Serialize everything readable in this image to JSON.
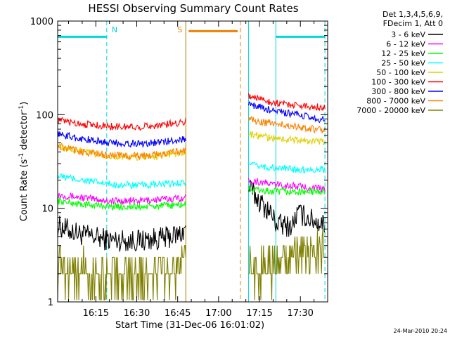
{
  "chart_data": {
    "type": "line",
    "title": "HESSI Observing Summary Count Rates",
    "xlabel": "Start Time (31-Dec-06 16:01:02)",
    "ylabel_main": "Count Rate (s",
    "ylabel_sup1": "-1",
    "ylabel_mid": " detector",
    "ylabel_sup2": "-1",
    "ylabel_end": ")",
    "y_scale": "log",
    "ylim": [
      1,
      1000
    ],
    "xlim": [
      "16:01",
      "17:40"
    ],
    "x_ticks": [
      "16:15",
      "16:30",
      "16:45",
      "17:00",
      "17:15",
      "17:30"
    ],
    "y_ticks": [
      "1",
      "10",
      "100",
      "1000"
    ],
    "legend_header": [
      "Det 1,3,4,5,6,9,",
      "FDecim 1, Att 0"
    ],
    "legend_position": "right",
    "timestamp": "24-Mar-2010 20:24",
    "flags": [
      {
        "label": "N",
        "color": "#00d8d8",
        "intervals": [
          [
            "16:01",
            "16:19"
          ],
          [
            "17:21",
            "17:39"
          ]
        ],
        "level": 680,
        "boundaries": [
          "16:19",
          "17:21",
          "17:39"
        ]
      },
      {
        "label": "S",
        "color": "#f08000",
        "intervals": [
          [
            "16:49",
            "17:07"
          ]
        ],
        "level": 780,
        "boundaries": [
          "16:48",
          "17:08"
        ]
      }
    ],
    "night_boundaries": [
      "16:48",
      "17:11"
    ],
    "series": [
      {
        "name": "3 - 6 keV",
        "color": "#000000",
        "segments": [
          {
            "x": [
              "16:01",
              "16:10",
              "16:20",
              "16:30",
              "16:40",
              "16:46",
              "16:48"
            ],
            "y": [
              6.5,
              5.2,
              4.6,
              4.5,
              4.8,
              5.3,
              6.0
            ]
          },
          {
            "x": [
              "17:11",
              "17:13",
              "17:16",
              "17:19",
              "17:21",
              "17:24",
              "17:27",
              "17:29",
              "17:33",
              "17:36",
              "17:39"
            ],
            "y": [
              17,
              14,
              11,
              9,
              7,
              6.5,
              6.5,
              9,
              7.8,
              7.2,
              6.8
            ]
          }
        ]
      },
      {
        "name": "6 - 12 keV",
        "color": "#ff00ff",
        "segments": [
          {
            "x": [
              "16:01",
              "16:10",
              "16:20",
              "16:30",
              "16:40",
              "16:48"
            ],
            "y": [
              14,
              13,
              12,
              12,
              12.5,
              13
            ]
          },
          {
            "x": [
              "17:11",
              "17:20",
              "17:30",
              "17:39"
            ],
            "y": [
              20,
              18,
              17,
              16
            ]
          }
        ]
      },
      {
        "name": "12 - 25 keV",
        "color": "#00ff00",
        "segments": [
          {
            "x": [
              "16:01",
              "16:10",
              "16:20",
              "16:30",
              "16:40",
              "16:48"
            ],
            "y": [
              12,
              11,
              10.5,
              10.3,
              10.6,
              11
            ]
          },
          {
            "x": [
              "17:11",
              "17:20",
              "17:30",
              "17:39"
            ],
            "y": [
              16,
              15,
              15,
              15
            ]
          }
        ]
      },
      {
        "name": "25 - 50 keV",
        "color": "#00ffff",
        "segments": [
          {
            "x": [
              "16:01",
              "16:10",
              "16:20",
              "16:30",
              "16:40",
              "16:48"
            ],
            "y": [
              22,
              20,
              18,
              17.5,
              18,
              19
            ]
          },
          {
            "x": [
              "17:11",
              "17:20",
              "17:30",
              "17:39"
            ],
            "y": [
              29,
              27,
              26,
              26
            ]
          }
        ]
      },
      {
        "name": "50 - 100 keV",
        "color": "#e0d000",
        "segments": [
          {
            "x": [
              "16:01",
              "16:10",
              "16:20",
              "16:30",
              "16:40",
              "16:48"
            ],
            "y": [
              46,
              40,
              36,
              35,
              37,
              40
            ]
          },
          {
            "x": [
              "17:11",
              "17:20",
              "17:30",
              "17:39"
            ],
            "y": [
              62,
              56,
              53,
              51
            ]
          }
        ]
      },
      {
        "name": "100 - 300 keV",
        "color": "#ff0000",
        "segments": [
          {
            "x": [
              "16:01",
              "16:10",
              "16:20",
              "16:30",
              "16:40",
              "16:48"
            ],
            "y": [
              87,
              80,
              75,
              74,
              78,
              85
            ]
          },
          {
            "x": [
              "17:11",
              "17:20",
              "17:30",
              "17:39"
            ],
            "y": [
              160,
              135,
              125,
              120
            ]
          }
        ]
      },
      {
        "name": "300 - 800 keV",
        "color": "#0000ff",
        "segments": [
          {
            "x": [
              "16:01",
              "16:10",
              "16:20",
              "16:30",
              "16:40",
              "16:48"
            ],
            "y": [
              62,
              55,
              50,
              49,
              51,
              55
            ]
          },
          {
            "x": [
              "17:11",
              "17:20",
              "17:30",
              "17:39"
            ],
            "y": [
              130,
              110,
              98,
              88
            ]
          }
        ]
      },
      {
        "name": "800 - 7000 keV",
        "color": "#ff8000",
        "segments": [
          {
            "x": [
              "16:01",
              "16:10",
              "16:20",
              "16:30",
              "16:40",
              "16:48"
            ],
            "y": [
              46,
              40,
              37,
              36,
              38,
              42
            ]
          },
          {
            "x": [
              "17:11",
              "17:20",
              "17:30",
              "17:39"
            ],
            "y": [
              88,
              80,
              74,
              67
            ]
          }
        ]
      },
      {
        "name": "7000 - 20000 keV",
        "color": "#808000",
        "segments": [
          {
            "x": [
              "16:01",
              "16:12",
              "16:20",
              "16:30",
              "16:40",
              "16:48"
            ],
            "y": [
              2.5,
              2.0,
              1.8,
              1.9,
              2.2,
              2.5
            ]
          },
          {
            "x": [
              "17:11",
              "17:20",
              "17:27",
              "17:30",
              "17:39"
            ],
            "y": [
              2.3,
              2.5,
              2.7,
              3.3,
              3.4
            ]
          }
        ]
      }
    ]
  }
}
